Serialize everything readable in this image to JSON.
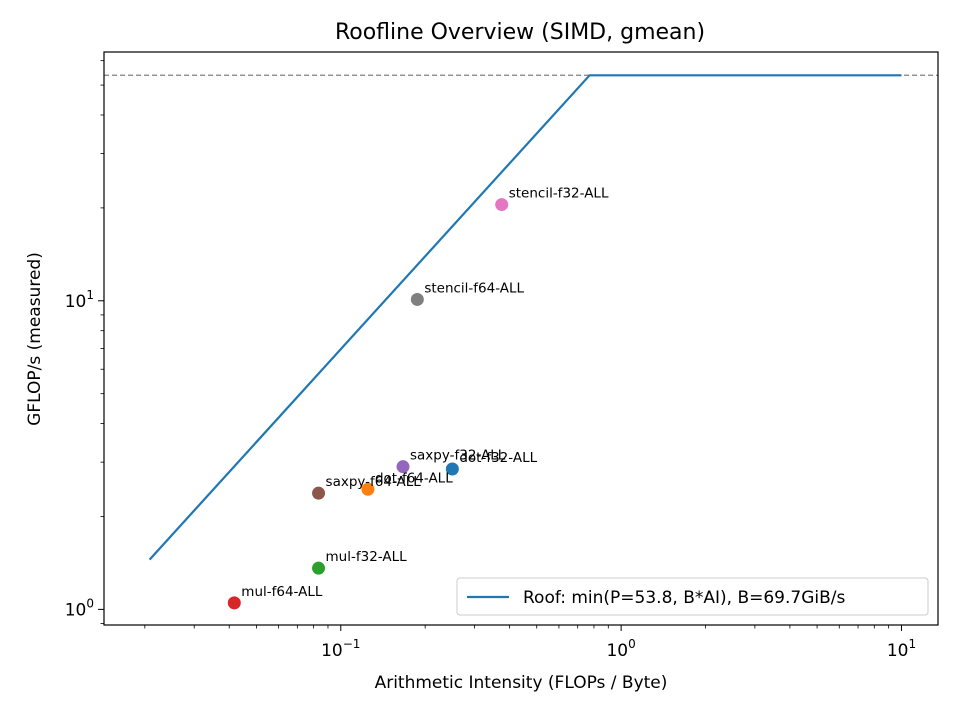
{
  "chart_data": {
    "type": "scatter",
    "title": "Roofline Overview (SIMD, gmean)",
    "xlabel": "Arithmetic Intensity (FLOPs / Byte)",
    "ylabel": "GFLOP/s (measured)",
    "xscale": "log",
    "yscale": "log",
    "xlim": [
      0.0143,
      13.5
    ],
    "ylim": [
      0.89,
      64
    ],
    "x_ticks": [
      {
        "value": 0.1,
        "base": "10",
        "exp": "−1"
      },
      {
        "value": 1,
        "base": "10",
        "exp": "0"
      },
      {
        "value": 10,
        "base": "10",
        "exp": "1"
      }
    ],
    "y_ticks": [
      {
        "value": 1,
        "base": "10",
        "exp": "0"
      },
      {
        "value": 10,
        "base": "10",
        "exp": "1"
      }
    ],
    "grid": false,
    "legend_position": "bottom-right",
    "roof": {
      "name": "Roof: min(P=53.8, B*AI), B=69.7GiB/s",
      "peak": 53.8,
      "bandwidth": 69.7,
      "color": "#1f77b4",
      "x_range": [
        0.0208,
        10
      ]
    },
    "peak_line": {
      "y": 53.8,
      "color": "#808080",
      "style": "dashed"
    },
    "points": [
      {
        "label": "stencil-f32-ALL",
        "x": 0.375,
        "y": 20.5,
        "color": "#e377c2"
      },
      {
        "label": "stencil-f64-ALL",
        "x": 0.1875,
        "y": 10.1,
        "color": "#7f7f7f"
      },
      {
        "label": "saxpy-f32-ALL",
        "x": 0.1667,
        "y": 2.9,
        "color": "#9467bd"
      },
      {
        "label": "dot-f32-ALL",
        "x": 0.25,
        "y": 2.85,
        "color": "#1f77b4"
      },
      {
        "label": "dot-f64-ALL",
        "x": 0.125,
        "y": 2.45,
        "color": "#ff7f0e"
      },
      {
        "label": "saxpy-f64-ALL",
        "x": 0.0833,
        "y": 2.38,
        "color": "#8c564b"
      },
      {
        "label": "mul-f32-ALL",
        "x": 0.0833,
        "y": 1.36,
        "color": "#2ca02c"
      },
      {
        "label": "mul-f64-ALL",
        "x": 0.0417,
        "y": 1.05,
        "color": "#d62728"
      }
    ]
  }
}
